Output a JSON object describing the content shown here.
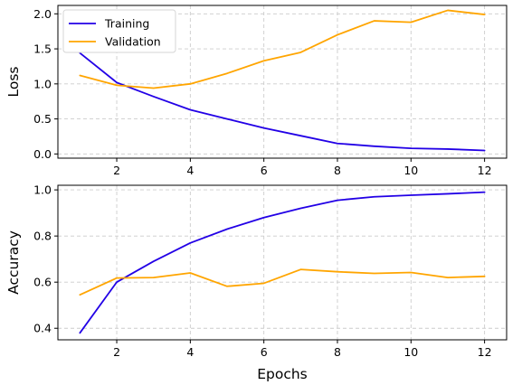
{
  "colors": {
    "training": "#2200e6",
    "validation": "#ffa500"
  },
  "chart_data": [
    {
      "type": "line",
      "xlabel": "",
      "ylabel": "Loss",
      "xlim": [
        0.4,
        12.6
      ],
      "ylim": [
        -0.06,
        2.12
      ],
      "x_ticks": [
        2,
        4,
        6,
        8,
        10,
        12
      ],
      "y_ticks": [
        0.0,
        0.5,
        1.0,
        1.5,
        2.0
      ],
      "y_tick_labels": [
        "0.0",
        "0.5",
        "1.0",
        "1.5",
        "2.0"
      ],
      "grid": true,
      "legend": "top-left",
      "x": [
        1,
        2,
        3,
        4,
        5,
        6,
        7,
        8,
        9,
        10,
        11,
        12
      ],
      "series": [
        {
          "name": "Training",
          "color": "#2200e6",
          "values": [
            1.44,
            1.02,
            0.82,
            0.63,
            0.5,
            0.37,
            0.26,
            0.15,
            0.11,
            0.08,
            0.07,
            0.05
          ]
        },
        {
          "name": "Validation",
          "color": "#ffa500",
          "values": [
            1.12,
            0.98,
            0.94,
            1.0,
            1.15,
            1.33,
            1.45,
            1.7,
            1.9,
            1.88,
            2.05,
            1.99
          ]
        }
      ]
    },
    {
      "type": "line",
      "xlabel": "Epochs",
      "ylabel": "Accuracy",
      "xlim": [
        0.4,
        12.6
      ],
      "ylim": [
        0.35,
        1.02
      ],
      "x_ticks": [
        2,
        4,
        6,
        8,
        10,
        12
      ],
      "y_ticks": [
        0.4,
        0.6,
        0.8,
        1.0
      ],
      "y_tick_labels": [
        "0.4",
        "0.6",
        "0.8",
        "1.0"
      ],
      "grid": true,
      "x": [
        1,
        2,
        3,
        4,
        5,
        6,
        7,
        8,
        9,
        10,
        11,
        12
      ],
      "series": [
        {
          "name": "Training",
          "color": "#2200e6",
          "values": [
            0.38,
            0.6,
            0.69,
            0.77,
            0.83,
            0.88,
            0.92,
            0.955,
            0.97,
            0.977,
            0.983,
            0.99
          ]
        },
        {
          "name": "Validation",
          "color": "#ffa500",
          "values": [
            0.545,
            0.618,
            0.62,
            0.64,
            0.582,
            0.595,
            0.655,
            0.645,
            0.638,
            0.642,
            0.62,
            0.625
          ]
        }
      ]
    }
  ]
}
